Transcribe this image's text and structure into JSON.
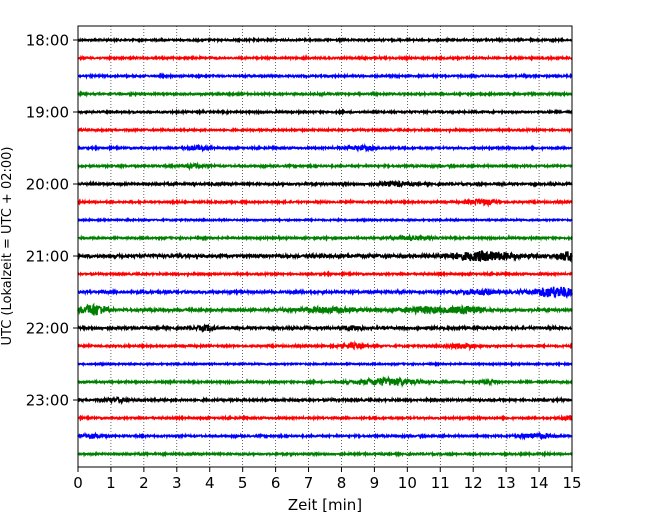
{
  "chart_data": {
    "type": "line",
    "title": "",
    "xlabel": "Zeit  [min]",
    "ylabel": "UTC (Lokalzeit = UTC + 02:00)",
    "xlim": [
      0,
      15
    ],
    "x_ticks": [
      "0",
      "1",
      "2",
      "3",
      "4",
      "5",
      "6",
      "7",
      "8",
      "9",
      "10",
      "11",
      "12",
      "13",
      "14",
      "15"
    ],
    "y_ticks": [
      "18:00",
      "19:00",
      "20:00",
      "21:00",
      "22:00",
      "23:00"
    ],
    "grid": "vertical dotted at each minute",
    "trace_interval_minutes": 15,
    "colors": [
      "#000000",
      "#ff0000",
      "#0000ff",
      "#008000"
    ],
    "rows": [
      {
        "start": "18:00",
        "color": "#000000",
        "level": 0.6,
        "events": []
      },
      {
        "start": "18:15",
        "color": "#ff0000",
        "level": 0.6,
        "events": []
      },
      {
        "start": "18:30",
        "color": "#0000ff",
        "level": 0.6,
        "events": []
      },
      {
        "start": "18:45",
        "color": "#008000",
        "level": 0.6,
        "events": []
      },
      {
        "start": "19:00",
        "color": "#000000",
        "level": 0.6,
        "events": []
      },
      {
        "start": "19:15",
        "color": "#ff0000",
        "level": 0.6,
        "events": []
      },
      {
        "start": "19:30",
        "color": "#0000ff",
        "level": 0.6,
        "events": [
          {
            "t": 3.6,
            "amp": 1.5,
            "w": 0.3
          },
          {
            "t": 8.6,
            "amp": 1.3,
            "w": 0.5
          }
        ]
      },
      {
        "start": "19:45",
        "color": "#008000",
        "level": 0.6,
        "events": [
          {
            "t": 3.5,
            "amp": 1.3,
            "w": 0.3
          }
        ]
      },
      {
        "start": "20:00",
        "color": "#000000",
        "level": 0.7,
        "events": [
          {
            "t": 9.6,
            "amp": 1.4,
            "w": 0.4
          }
        ]
      },
      {
        "start": "20:15",
        "color": "#ff0000",
        "level": 0.6,
        "events": [
          {
            "t": 12.3,
            "amp": 1.8,
            "w": 0.4
          }
        ]
      },
      {
        "start": "20:30",
        "color": "#0000ff",
        "level": 0.5,
        "events": []
      },
      {
        "start": "20:45",
        "color": "#008000",
        "level": 0.6,
        "events": [
          {
            "t": 10.0,
            "amp": 1.2,
            "w": 0.5
          }
        ]
      },
      {
        "start": "21:00",
        "color": "#000000",
        "level": 1.0,
        "events": [
          {
            "t": 12.3,
            "amp": 3.0,
            "w": 1.0
          },
          {
            "t": 14.9,
            "amp": 3.0,
            "w": 0.3
          }
        ]
      },
      {
        "start": "21:15",
        "color": "#ff0000",
        "level": 0.6,
        "events": []
      },
      {
        "start": "21:30",
        "color": "#0000ff",
        "level": 0.8,
        "events": [
          {
            "t": 12.2,
            "amp": 1.5,
            "w": 0.5
          },
          {
            "t": 14.5,
            "amp": 3.8,
            "w": 0.7
          }
        ]
      },
      {
        "start": "21:45",
        "color": "#008000",
        "level": 0.8,
        "events": [
          {
            "t": 0.5,
            "amp": 4.0,
            "w": 0.4
          },
          {
            "t": 7.5,
            "amp": 1.6,
            "w": 1.0
          },
          {
            "t": 10.5,
            "amp": 2.2,
            "w": 0.7
          },
          {
            "t": 11.8,
            "amp": 2.6,
            "w": 0.5
          }
        ]
      },
      {
        "start": "22:00",
        "color": "#000000",
        "level": 0.8,
        "events": [
          {
            "t": 3.9,
            "amp": 1.6,
            "w": 0.3
          },
          {
            "t": 8.3,
            "amp": 1.4,
            "w": 0.3
          }
        ]
      },
      {
        "start": "22:15",
        "color": "#ff0000",
        "level": 0.6,
        "events": [
          {
            "t": 8.4,
            "amp": 1.6,
            "w": 0.4
          },
          {
            "t": 11.7,
            "amp": 1.8,
            "w": 0.4
          }
        ]
      },
      {
        "start": "22:30",
        "color": "#0000ff",
        "level": 0.5,
        "events": []
      },
      {
        "start": "22:45",
        "color": "#008000",
        "level": 0.6,
        "events": [
          {
            "t": 9.4,
            "amp": 2.6,
            "w": 0.9
          },
          {
            "t": 12.5,
            "amp": 1.2,
            "w": 0.3
          }
        ]
      },
      {
        "start": "23:00",
        "color": "#000000",
        "level": 0.7,
        "events": [
          {
            "t": 1.2,
            "amp": 1.4,
            "w": 0.3
          }
        ]
      },
      {
        "start": "23:15",
        "color": "#ff0000",
        "level": 0.6,
        "events": [
          {
            "t": 14.9,
            "amp": 1.6,
            "w": 0.2
          }
        ]
      },
      {
        "start": "23:30",
        "color": "#0000ff",
        "level": 0.6,
        "events": [
          {
            "t": 0.4,
            "amp": 1.6,
            "w": 0.3
          },
          {
            "t": 13.9,
            "amp": 1.7,
            "w": 0.5
          }
        ]
      },
      {
        "start": "23:45",
        "color": "#008000",
        "level": 0.6,
        "events": []
      }
    ]
  }
}
